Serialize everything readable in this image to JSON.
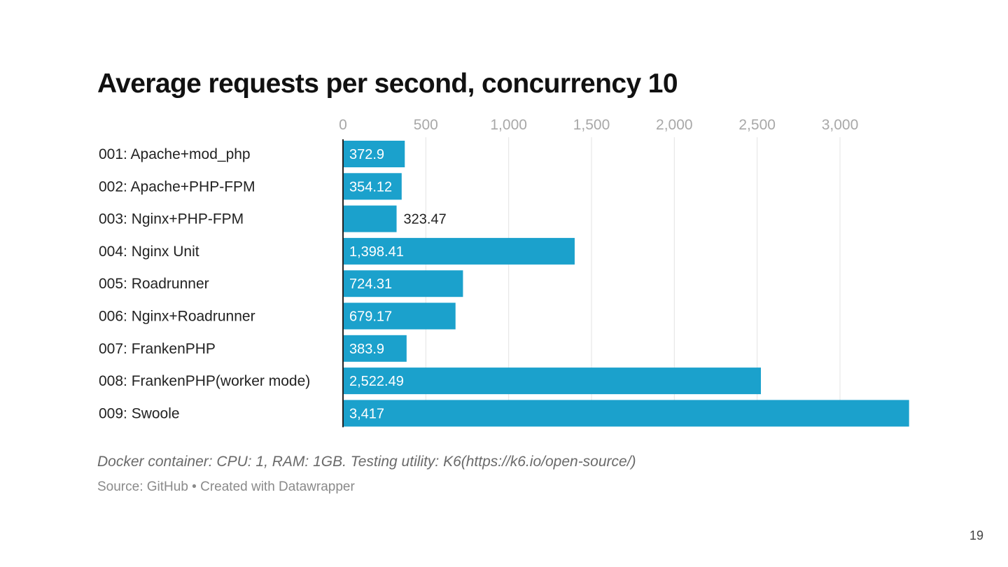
{
  "slide": {
    "page_number": "19"
  },
  "chart_data": {
    "type": "bar",
    "orientation": "horizontal",
    "title": "Average requests per second, concurrency 10",
    "xlabel": "",
    "ylabel": "",
    "xlim": [
      0,
      3417
    ],
    "x_ticks": [
      0,
      500,
      1000,
      1500,
      2000,
      2500,
      3000
    ],
    "x_tick_labels": [
      "0",
      "500",
      "1,000",
      "1,500",
      "2,000",
      "2,500",
      "3,000"
    ],
    "grid": true,
    "bar_color": "#1ba1cc",
    "categories": [
      "001: Apache+mod_php",
      "002: Apache+PHP-FPM",
      "003: Nginx+PHP-FPM",
      "004: Nginx Unit",
      "005: Roadrunner",
      "006: Nginx+Roadrunner",
      "007: FrankenPHP",
      "008: FrankenPHP(worker mode)",
      "009: Swoole"
    ],
    "values": [
      372.9,
      354.12,
      323.47,
      1398.41,
      724.31,
      679.17,
      383.9,
      2522.49,
      3417
    ],
    "value_labels": [
      "372.9",
      "354.12",
      "323.47",
      "1,398.41",
      "724.31",
      "679.17",
      "383.9",
      "2,522.49",
      "3,417"
    ],
    "notes": "Docker container: CPU: 1, RAM: 1GB. Testing utility: K6(https://k6.io/open-source/)",
    "source": "Source: GitHub • Created with Datawrapper"
  }
}
